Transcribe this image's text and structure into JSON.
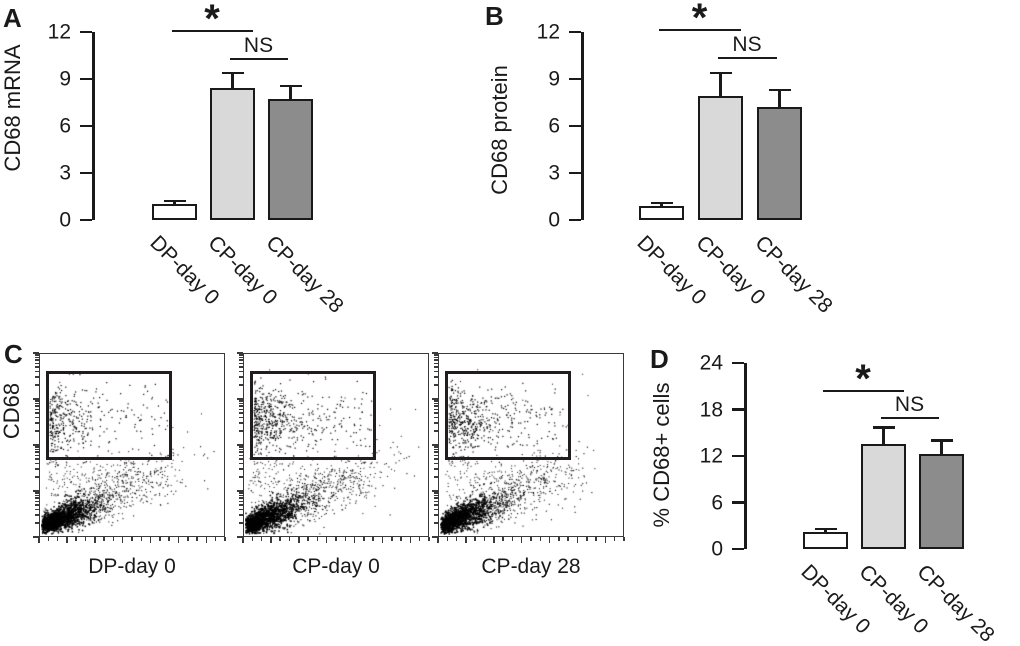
{
  "colors": {
    "text": "#1a1a1a",
    "bar_border": "#1a1a1a",
    "axis": "#1a1a1a",
    "flow_frame": "#3a3a3a",
    "gate_border": "#221d1d",
    "scatter_points": "#000000"
  },
  "chart_data": [
    {
      "panel": "A",
      "type": "bar",
      "ylabel": "CD68 mRNA",
      "categories": [
        "DP-day 0",
        "CP-day 0",
        "CP-day 28"
      ],
      "values": [
        1.0,
        8.4,
        7.7
      ],
      "errors": [
        0.2,
        1.0,
        0.85
      ],
      "yticks": [
        0,
        3,
        6,
        9,
        12
      ],
      "ylim": [
        0,
        12
      ],
      "bar_colors": [
        "#ffffff",
        "#d9d9d9",
        "#8c8c8c"
      ],
      "significance": [
        {
          "label": "*",
          "pair": [
            0,
            1
          ]
        },
        {
          "label": "NS",
          "pair": [
            1,
            2
          ]
        }
      ]
    },
    {
      "panel": "B",
      "type": "bar",
      "ylabel": "CD68 protein",
      "categories": [
        "DP-day 0",
        "CP-day 0",
        "CP-day 28"
      ],
      "values": [
        0.9,
        7.9,
        7.2
      ],
      "errors": [
        0.2,
        1.5,
        1.1
      ],
      "yticks": [
        0,
        3,
        6,
        9,
        12
      ],
      "ylim": [
        0,
        12
      ],
      "bar_colors": [
        "#ffffff",
        "#d9d9d9",
        "#8c8c8c"
      ],
      "significance": [
        {
          "label": "*",
          "pair": [
            0,
            1
          ]
        },
        {
          "label": "NS",
          "pair": [
            1,
            2
          ]
        }
      ]
    },
    {
      "panel": "C",
      "type": "scatter",
      "subtype": "flow-cytometry",
      "ylabel": "CD68",
      "axes": {
        "x_scale": "log",
        "y_scale": "log",
        "decades": 4,
        "tick_labels": "none"
      },
      "plots": [
        {
          "xlabel": "DP-day 0",
          "gate": true,
          "render": {
            "seed": 7,
            "gated_points": 380,
            "main_points": 1900,
            "gate_x_scale": 18
          }
        },
        {
          "xlabel": "CP-day 0",
          "gate": true,
          "render": {
            "seed": 13,
            "gated_points": 560,
            "main_points": 1900,
            "gate_x_scale": 24
          }
        },
        {
          "xlabel": "CP-day 28",
          "gate": true,
          "render": {
            "seed": 29,
            "gated_points": 530,
            "main_points": 1900,
            "gate_x_scale": 23
          }
        }
      ]
    },
    {
      "panel": "D",
      "type": "bar",
      "ylabel": "% CD68+ cells",
      "categories": [
        "DP-day 0",
        "CP-day 0",
        "CP-day 28"
      ],
      "values": [
        2.2,
        13.6,
        12.3
      ],
      "errors": [
        0.4,
        2.1,
        1.7
      ],
      "yticks": [
        0,
        6,
        12,
        18,
        24
      ],
      "ylim": [
        0,
        24
      ],
      "bar_colors": [
        "#ffffff",
        "#d9d9d9",
        "#8c8c8c"
      ],
      "significance": [
        {
          "label": "*",
          "pair": [
            0,
            1
          ]
        },
        {
          "label": "NS",
          "pair": [
            1,
            2
          ]
        }
      ]
    }
  ]
}
